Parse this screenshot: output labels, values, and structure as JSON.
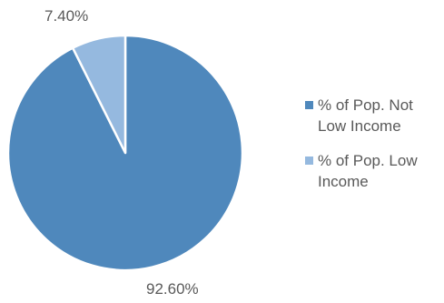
{
  "chart_data": {
    "type": "pie",
    "categories": [
      "% of Pop. Not Low Income",
      "% of Pop. Low Income"
    ],
    "values": [
      92.6,
      7.4
    ],
    "data_labels": [
      "92.60%",
      "7.40%"
    ],
    "colors": [
      "#4F88BC",
      "#95B9DF"
    ],
    "legend_position": "right",
    "start_angle": "top, clockwise"
  }
}
